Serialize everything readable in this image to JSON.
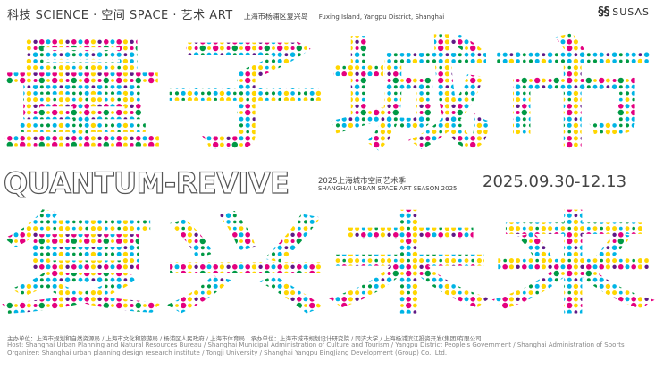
{
  "header": {
    "tagline": "科技 SCIENCE · 空间 SPACE · 艺术 ART",
    "location_cn": "上海市杨浦区复兴岛",
    "location_en": "Fuxing Island, Yangpu District, Shanghai",
    "logo_text": "SUSAS"
  },
  "title": {
    "top_chars": "量子城市",
    "bottom_chars": "复兴未来",
    "english": "QUANTUM-REVIVE"
  },
  "season": {
    "cn": "2025上海城市空间艺术季",
    "en": "SHANGHAI URBAN SPACE ART SEASON 2025",
    "dates": "2025.09.30-12.13"
  },
  "footer": {
    "cn": "主办单位：上海市规划和自然资源局 / 上海市文化和旅游局 / 杨浦区人民政府 / 上海市体育局　承办单位：上海市城市规划设计研究院 / 同济大学 / 上海杨浦滨江投资开发(集团)有限公司",
    "en": "Host: Shanghai Urban Planning and Natural Resources Bureau / Shanghai Municipal Administration of Culture and Tourism / Yangpu District People's Government / Shanghai Administration of Sports   Organizer: Shanghai urban planning design research institute / Tongji University / Shanghai Yangpu BingJiang Development (Group) Co., Ltd."
  },
  "colors": {
    "dots": [
      "#e4007f",
      "#00b4e5",
      "#ffd600",
      "#5f1985",
      "#009944"
    ]
  }
}
